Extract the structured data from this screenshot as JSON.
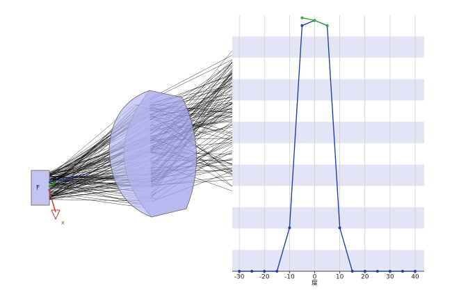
{
  "scene": {
    "face_label": "F",
    "axis_label": "x"
  },
  "chart_data": {
    "type": "line",
    "x_label": "度",
    "x": [
      -30,
      -25,
      -20,
      -15,
      -10,
      -5,
      0,
      5,
      10,
      15,
      20,
      25,
      30,
      35,
      40
    ],
    "series": [
      {
        "color": "#1f3fb0",
        "values": [
          0,
          0,
          0,
          0,
          0.17,
          0.96,
          0.98,
          0.96,
          0.17,
          0,
          0,
          0,
          0,
          0,
          0
        ]
      },
      {
        "color": "#3aa83a",
        "values": [
          null,
          null,
          null,
          null,
          null,
          0.99,
          0.98,
          0.96,
          null,
          null,
          null,
          null,
          null,
          null,
          null
        ]
      }
    ],
    "xlim": [
      -32.8,
      43.6
    ],
    "ylim": [
      0,
      1
    ],
    "xticks": [
      -30,
      -20,
      -10,
      0,
      10,
      20,
      30,
      40
    ],
    "grid": true
  }
}
